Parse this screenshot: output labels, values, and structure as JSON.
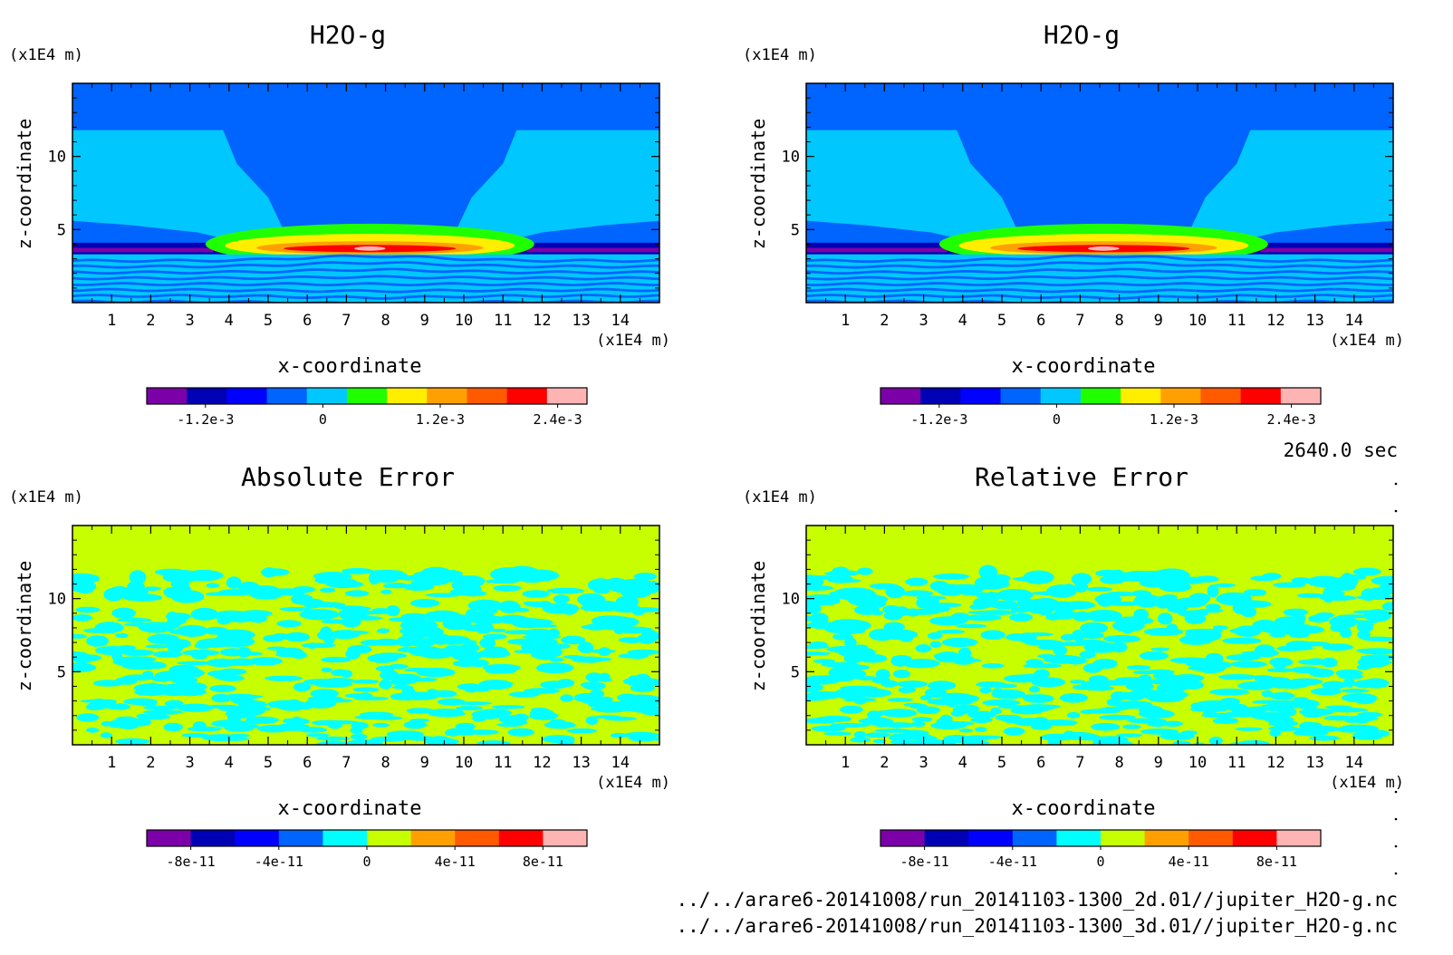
{
  "time_label": "2640.0 sec",
  "files": [
    "../../arare6-20141008/run_20141103-1300_2d.01//jupiter_H2O-g.nc",
    "../../arare6-20141008/run_20141103-1300_3d.01//jupiter_H2O-g.nc"
  ],
  "chart_data": [
    {
      "type": "heatmap",
      "title": "H2O-g",
      "xlabel": "x-coordinate",
      "ylabel": "z-coordinate",
      "x_unit": "(x1E4 m)",
      "y_unit": "(x1E4 m)",
      "xlim": [
        0,
        15
      ],
      "ylim": [
        0,
        15
      ],
      "x_ticks": [
        1,
        2,
        3,
        4,
        5,
        6,
        7,
        8,
        9,
        10,
        11,
        12,
        13,
        14
      ],
      "y_ticks": [
        5,
        10
      ],
      "field": "h2o",
      "colorbar": {
        "colors": [
          "#7b00a8",
          "#0000b4",
          "#0000ff",
          "#0064ff",
          "#00c8ff",
          "#20ff00",
          "#ffee00",
          "#ffa000",
          "#ff5a00",
          "#ff0000",
          "#ffb4b4"
        ],
        "tick_labels": [
          "-1.2e-3",
          "0",
          "1.2e-3",
          "2.4e-3"
        ],
        "tick_values": [
          -0.0012,
          0,
          0.0012,
          0.0024
        ],
        "range": [
          -0.0018,
          0.0027
        ]
      }
    },
    {
      "type": "heatmap",
      "title": "H2O-g",
      "xlabel": "x-coordinate",
      "ylabel": "z-coordinate",
      "x_unit": "(x1E4 m)",
      "y_unit": "(x1E4 m)",
      "xlim": [
        0,
        15
      ],
      "ylim": [
        0,
        15
      ],
      "x_ticks": [
        1,
        2,
        3,
        4,
        5,
        6,
        7,
        8,
        9,
        10,
        11,
        12,
        13,
        14
      ],
      "y_ticks": [
        5,
        10
      ],
      "field": "h2o",
      "colorbar": {
        "colors": [
          "#7b00a8",
          "#0000b4",
          "#0000ff",
          "#0064ff",
          "#00c8ff",
          "#20ff00",
          "#ffee00",
          "#ffa000",
          "#ff5a00",
          "#ff0000",
          "#ffb4b4"
        ],
        "tick_labels": [
          "-1.2e-3",
          "0",
          "1.2e-3",
          "2.4e-3"
        ],
        "tick_values": [
          -0.0012,
          0,
          0.0012,
          0.0024
        ],
        "range": [
          -0.0018,
          0.0027
        ]
      }
    },
    {
      "type": "heatmap",
      "title": "Absolute Error",
      "xlabel": "x-coordinate",
      "ylabel": "z-coordinate",
      "x_unit": "(x1E4 m)",
      "y_unit": "(x1E4 m)",
      "xlim": [
        0,
        15
      ],
      "ylim": [
        0,
        15
      ],
      "x_ticks": [
        1,
        2,
        3,
        4,
        5,
        6,
        7,
        8,
        9,
        10,
        11,
        12,
        13,
        14
      ],
      "y_ticks": [
        5,
        10
      ],
      "field": "noise",
      "colorbar": {
        "colors": [
          "#7b00a8",
          "#0000b4",
          "#0000ff",
          "#0064ff",
          "#00ffff",
          "#c8ff00",
          "#ffa000",
          "#ff5a00",
          "#ff0000",
          "#ffb4b4"
        ],
        "tick_labels": [
          "-8e-11",
          "-4e-11",
          "0",
          "4e-11",
          "8e-11"
        ],
        "tick_values": [
          -8e-11,
          -4e-11,
          0,
          4e-11,
          8e-11
        ],
        "range": [
          -1e-10,
          1e-10
        ]
      }
    },
    {
      "type": "heatmap",
      "title": "Relative Error",
      "xlabel": "x-coordinate",
      "ylabel": "z-coordinate",
      "x_unit": "(x1E4 m)",
      "y_unit": "(x1E4 m)",
      "xlim": [
        0,
        15
      ],
      "ylim": [
        0,
        15
      ],
      "x_ticks": [
        1,
        2,
        3,
        4,
        5,
        6,
        7,
        8,
        9,
        10,
        11,
        12,
        13,
        14
      ],
      "y_ticks": [
        5,
        10
      ],
      "field": "noise",
      "colorbar": {
        "colors": [
          "#7b00a8",
          "#0000b4",
          "#0000ff",
          "#0064ff",
          "#00ffff",
          "#c8ff00",
          "#ffa000",
          "#ff5a00",
          "#ff0000",
          "#ffb4b4"
        ],
        "tick_labels": [
          "-8e-11",
          "-4e-11",
          "0",
          "4e-11",
          "8e-11"
        ],
        "tick_values": [
          -8e-11,
          -4e-11,
          0,
          4e-11,
          8e-11
        ],
        "range": [
          -1e-10,
          1e-10
        ]
      }
    }
  ]
}
